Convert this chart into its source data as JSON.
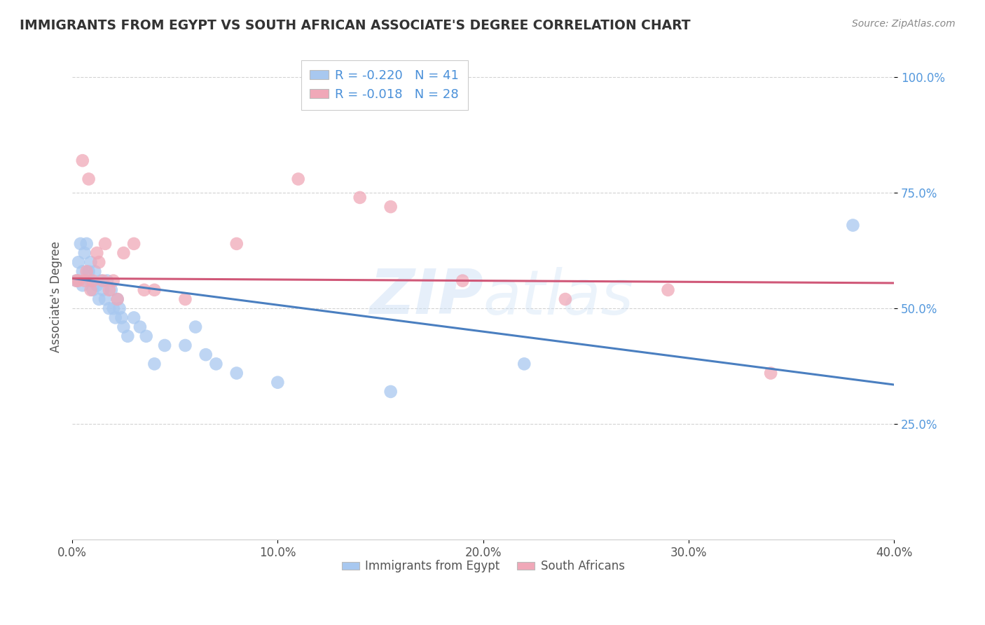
{
  "title": "IMMIGRANTS FROM EGYPT VS SOUTH AFRICAN ASSOCIATE'S DEGREE CORRELATION CHART",
  "source": "Source: ZipAtlas.com",
  "ylabel": "Associate's Degree",
  "xmin": 0.0,
  "xmax": 0.4,
  "ymin": 0.0,
  "ymax": 1.05,
  "legend_r1": "R = -0.220",
  "legend_n1": "N = 41",
  "legend_r2": "R = -0.018",
  "legend_n2": "N = 28",
  "color_blue": "#a8c8f0",
  "color_pink": "#f0a8b8",
  "line_blue": "#4a7fc0",
  "line_pink": "#d05878",
  "watermark": "ZIPatlas",
  "blue_scatter_x": [
    0.002,
    0.003,
    0.004,
    0.005,
    0.005,
    0.006,
    0.007,
    0.008,
    0.009,
    0.009,
    0.01,
    0.011,
    0.012,
    0.013,
    0.014,
    0.015,
    0.016,
    0.017,
    0.018,
    0.019,
    0.02,
    0.021,
    0.022,
    0.023,
    0.024,
    0.025,
    0.027,
    0.03,
    0.033,
    0.036,
    0.04,
    0.045,
    0.055,
    0.06,
    0.065,
    0.07,
    0.08,
    0.1,
    0.155,
    0.22,
    0.38
  ],
  "blue_scatter_y": [
    0.56,
    0.6,
    0.64,
    0.58,
    0.55,
    0.62,
    0.64,
    0.58,
    0.6,
    0.56,
    0.54,
    0.58,
    0.55,
    0.52,
    0.56,
    0.54,
    0.52,
    0.56,
    0.5,
    0.54,
    0.5,
    0.48,
    0.52,
    0.5,
    0.48,
    0.46,
    0.44,
    0.48,
    0.46,
    0.44,
    0.38,
    0.42,
    0.42,
    0.46,
    0.4,
    0.38,
    0.36,
    0.34,
    0.32,
    0.38,
    0.68
  ],
  "pink_scatter_x": [
    0.002,
    0.003,
    0.005,
    0.006,
    0.007,
    0.008,
    0.009,
    0.01,
    0.012,
    0.013,
    0.015,
    0.016,
    0.018,
    0.02,
    0.022,
    0.025,
    0.03,
    0.035,
    0.04,
    0.055,
    0.08,
    0.11,
    0.14,
    0.155,
    0.19,
    0.24,
    0.29,
    0.34
  ],
  "pink_scatter_y": [
    0.56,
    0.56,
    0.82,
    0.56,
    0.58,
    0.78,
    0.54,
    0.56,
    0.62,
    0.6,
    0.56,
    0.64,
    0.54,
    0.56,
    0.52,
    0.62,
    0.64,
    0.54,
    0.54,
    0.52,
    0.64,
    0.78,
    0.74,
    0.72,
    0.56,
    0.52,
    0.54,
    0.36
  ],
  "blue_trend_x": [
    0.0,
    0.4
  ],
  "blue_trend_y": [
    0.565,
    0.335
  ],
  "pink_trend_x": [
    0.0,
    0.4
  ],
  "pink_trend_y": [
    0.565,
    0.555
  ],
  "background_color": "#ffffff",
  "grid_color": "#c8c8c8",
  "title_color": "#333333",
  "label_color": "#4a90d9",
  "ytick_color": "#5599dd"
}
